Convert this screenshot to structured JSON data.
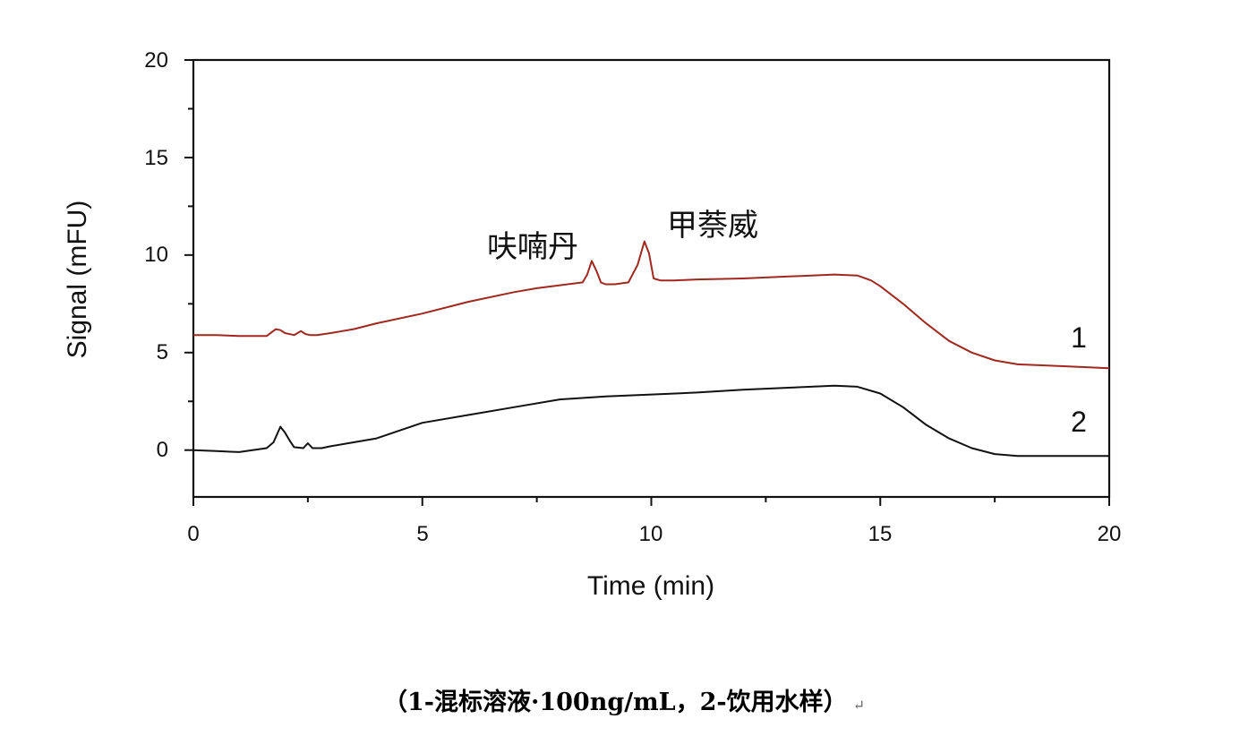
{
  "chart_data": {
    "type": "line",
    "xlabel": "Time (min)",
    "ylabel": "Signal (mFU)",
    "xlim": [
      0,
      20
    ],
    "ylim": [
      -2.4,
      20
    ],
    "xticks": [
      "0",
      "5",
      "10",
      "15",
      "20"
    ],
    "yticks": [
      "0",
      "5",
      "10",
      "15",
      "20"
    ],
    "grid": false,
    "series": [
      {
        "name": "1",
        "color": "#a0281e",
        "x": [
          0,
          0.5,
          1.0,
          1.6,
          1.8,
          1.9,
          2.0,
          2.2,
          2.35,
          2.45,
          2.55,
          2.7,
          3.0,
          3.5,
          4.0,
          5.0,
          6.0,
          7.0,
          7.5,
          8.0,
          8.5,
          8.6,
          8.7,
          8.8,
          8.9,
          9.0,
          9.2,
          9.5,
          9.7,
          9.85,
          9.95,
          10.05,
          10.2,
          10.5,
          11.0,
          12.0,
          13.0,
          14.0,
          14.5,
          14.8,
          15.0,
          15.5,
          16.0,
          16.5,
          17.0,
          17.5,
          18.0,
          19.0,
          20.0
        ],
        "y": [
          5.9,
          5.9,
          5.85,
          5.85,
          6.2,
          6.15,
          6.0,
          5.9,
          6.1,
          5.95,
          5.9,
          5.9,
          6.0,
          6.2,
          6.5,
          7.0,
          7.6,
          8.1,
          8.3,
          8.45,
          8.6,
          9.0,
          9.7,
          9.2,
          8.6,
          8.5,
          8.5,
          8.6,
          9.5,
          10.7,
          10.1,
          8.8,
          8.7,
          8.7,
          8.75,
          8.8,
          8.9,
          9.0,
          8.95,
          8.7,
          8.4,
          7.5,
          6.5,
          5.6,
          5.0,
          4.6,
          4.4,
          4.3,
          4.2
        ]
      },
      {
        "name": "2",
        "color": "#111111",
        "x": [
          0,
          0.5,
          1.0,
          1.6,
          1.75,
          1.9,
          2.0,
          2.1,
          2.2,
          2.4,
          2.5,
          2.6,
          2.8,
          3.0,
          3.5,
          4.0,
          5.0,
          6.0,
          7.0,
          8.0,
          9.0,
          10.0,
          11.0,
          12.0,
          13.0,
          14.0,
          14.5,
          15.0,
          15.5,
          16.0,
          16.5,
          17.0,
          17.5,
          18.0,
          19.0,
          20.0
        ],
        "y": [
          0.0,
          -0.05,
          -0.1,
          0.1,
          0.4,
          1.2,
          0.9,
          0.5,
          0.15,
          0.1,
          0.35,
          0.1,
          0.1,
          0.2,
          0.4,
          0.6,
          1.4,
          1.8,
          2.2,
          2.6,
          2.75,
          2.85,
          2.95,
          3.1,
          3.2,
          3.3,
          3.25,
          2.9,
          2.2,
          1.3,
          0.6,
          0.1,
          -0.2,
          -0.3,
          -0.3,
          -0.3
        ]
      }
    ],
    "annotations": [
      "呋喃丹",
      "甲萘威"
    ]
  },
  "caption": "（1-混标溶液·100ng/mL，2-饮用水样）",
  "caption_mark": "↵"
}
